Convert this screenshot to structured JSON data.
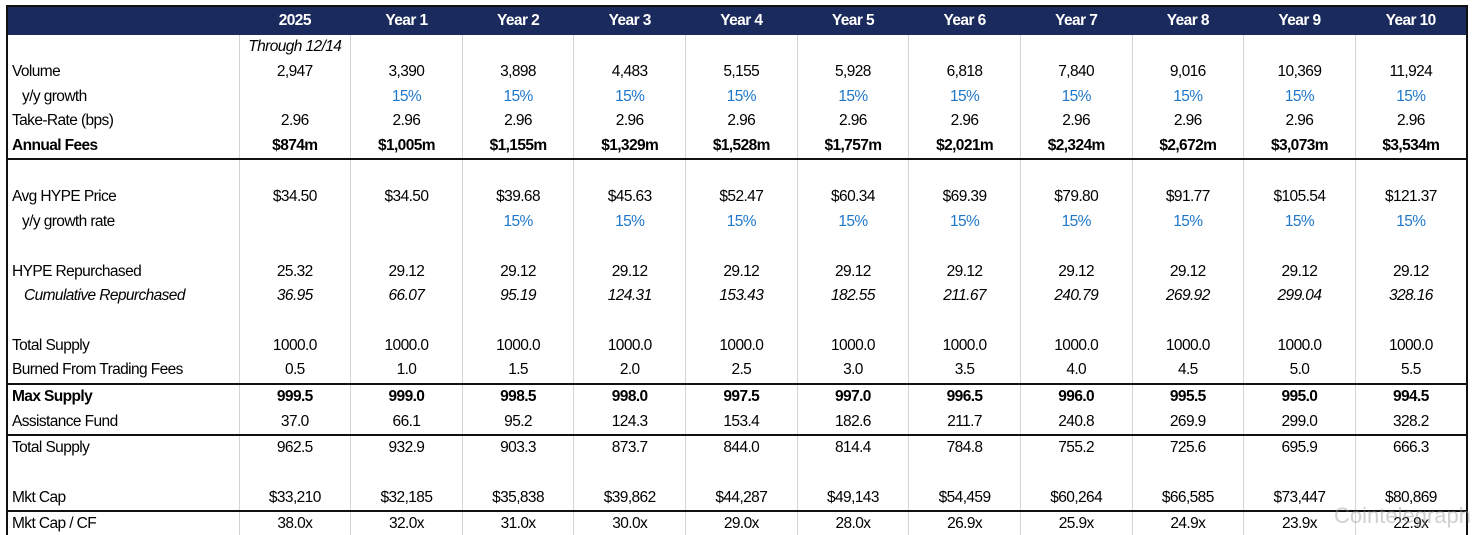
{
  "table": {
    "header": [
      null,
      "2025",
      "Year 1",
      "Year 2",
      "Year 3",
      "Year 4",
      "Year 5",
      "Year 6",
      "Year 7",
      "Year 8",
      "Year 9",
      "Year 10"
    ],
    "rows": [
      [
        null,
        "Through 12/14"
      ],
      [
        "Volume",
        "2,947",
        "3,390",
        "3,898",
        "4,483",
        "5,155",
        "5,928",
        "6,818",
        "7,840",
        "9,016",
        "10,369",
        "11,924"
      ],
      [
        "y/y growth",
        null,
        "15%",
        "15%",
        "15%",
        "15%",
        "15%",
        "15%",
        "15%",
        "15%",
        "15%",
        "15%"
      ],
      [
        "Take-Rate (bps)",
        "2.96",
        "2.96",
        "2.96",
        "2.96",
        "2.96",
        "2.96",
        "2.96",
        "2.96",
        "2.96",
        "2.96",
        "2.96"
      ],
      [
        "Annual Fees",
        "$874m",
        "$1,005m",
        "$1,155m",
        "$1,329m",
        "$1,528m",
        "$1,757m",
        "$2,021m",
        "$2,324m",
        "$2,672m",
        "$3,073m",
        "$3,534m"
      ],
      [],
      [
        "Avg HYPE Price",
        "$34.50",
        "$34.50",
        "$39.68",
        "$45.63",
        "$52.47",
        "$60.34",
        "$69.39",
        "$79.80",
        "$91.77",
        "$105.54",
        "$121.37"
      ],
      [
        "y/y growth rate",
        null,
        null,
        "15%",
        "15%",
        "15%",
        "15%",
        "15%",
        "15%",
        "15%",
        "15%",
        "15%"
      ],
      [],
      [
        "HYPE Repurchased",
        "25.32",
        "29.12",
        "29.12",
        "29.12",
        "29.12",
        "29.12",
        "29.12",
        "29.12",
        "29.12",
        "29.12",
        "29.12"
      ],
      [
        "Cumulative Repurchased",
        "36.95",
        "66.07",
        "95.19",
        "124.31",
        "153.43",
        "182.55",
        "211.67",
        "240.79",
        "269.92",
        "299.04",
        "328.16"
      ],
      [],
      [
        "Total Supply",
        "1000.0",
        "1000.0",
        "1000.0",
        "1000.0",
        "1000.0",
        "1000.0",
        "1000.0",
        "1000.0",
        "1000.0",
        "1000.0",
        "1000.0"
      ],
      [
        "Burned From Trading Fees",
        "0.5",
        "1.0",
        "1.5",
        "2.0",
        "2.5",
        "3.0",
        "3.5",
        "4.0",
        "4.5",
        "5.0",
        "5.5"
      ],
      [
        "Max Supply",
        "999.5",
        "999.0",
        "998.5",
        "998.0",
        "997.5",
        "997.0",
        "996.5",
        "996.0",
        "995.5",
        "995.0",
        "994.5"
      ],
      [
        "Assistance Fund",
        "37.0",
        "66.1",
        "95.2",
        "124.3",
        "153.4",
        "182.6",
        "211.7",
        "240.8",
        "269.9",
        "299.0",
        "328.2"
      ],
      [
        "Total Supply",
        "962.5",
        "932.9",
        "903.3",
        "873.7",
        "844.0",
        "814.4",
        "784.8",
        "755.2",
        "725.6",
        "695.9",
        "666.3"
      ],
      [],
      [
        "Mkt Cap",
        "$33,210",
        "$32,185",
        "$35,838",
        "$39,862",
        "$44,287",
        "$49,143",
        "$54,459",
        "$60,264",
        "$66,585",
        "$73,447",
        "$80,869"
      ],
      [
        "Mkt Cap / CF",
        "38.0x",
        "32.0x",
        "31.0x",
        "30.0x",
        "29.0x",
        "28.0x",
        "26.9x",
        "25.9x",
        "24.9x",
        "23.9x",
        "22.9x"
      ]
    ],
    "watermark": "Cointelegraph"
  }
}
